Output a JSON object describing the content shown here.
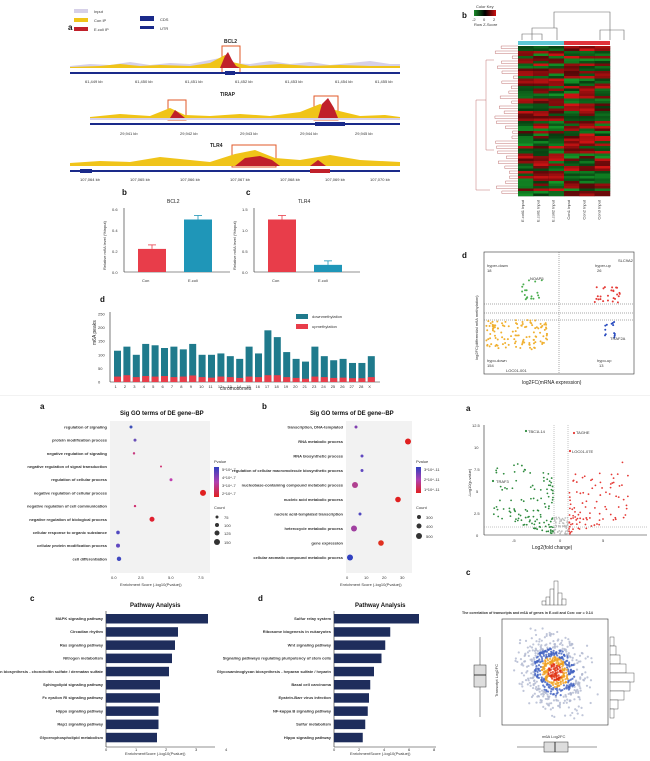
{
  "fig1": {
    "panel_a": {
      "letter": "a",
      "legend": [
        "Input",
        "Con IP",
        "E.coli IP"
      ],
      "gene_legend": [
        "CDS",
        "UTR"
      ],
      "genes": [
        "BCL2",
        "TIRAP",
        "TLR4"
      ],
      "bcl2_ticks": [
        "61,449 kb",
        "61,450 kb",
        "61,451 kb",
        "61,452 kb",
        "61,453 kb",
        "61,454 kb",
        "61,455 kb"
      ],
      "tirap_ticks": [
        "29,941 kb",
        "29,942 kb",
        "29,943 kb",
        "29,944 kb",
        "29,945 kb"
      ],
      "tlr4_ticks": [
        "107,064 kb",
        "107,065 kb",
        "107,066 kb",
        "107,067 kb",
        "107,068 kb",
        "107,069 kb",
        "107,070 kb"
      ]
    },
    "panel_b": {
      "letter": "b",
      "title": "BCL2",
      "ylabel": "Relative m6A level (%input)",
      "categories": [
        "Con",
        "E.coli"
      ],
      "values": [
        0.22,
        0.5
      ],
      "yticks": [
        "0.0",
        "0.2",
        "0.4",
        "0.6"
      ]
    },
    "panel_c": {
      "letter": "c",
      "title": "TLR4",
      "ylabel": "Relative m6A level (%input)",
      "categories": [
        "Con",
        "E.coli"
      ],
      "values": [
        1.25,
        0.17
      ],
      "yticks": [
        "0.0",
        "0.5",
        "1.0",
        "1.5"
      ]
    },
    "panel_d": {
      "letter": "d",
      "ylabel": "m6A peaks",
      "xlabel": "chromosomes",
      "legend": [
        "downmethylation",
        "upmethylation"
      ],
      "yticks": [
        "0",
        "50",
        "100",
        "150",
        "200",
        "250"
      ],
      "colors": {
        "down": "#1f7a8c",
        "up": "#e83d4a"
      }
    }
  },
  "fig2": {
    "panel_b": {
      "letter": "b",
      "color_key": "Color Key",
      "key_range": [
        "-2",
        "0",
        "2"
      ],
      "key_label": "Row Z-Score",
      "columns": [
        "E.coli1 Input",
        "E.coli1 Input",
        "E.coli2 Input",
        "Con1 Input",
        "Con2 Input",
        "Con3 Input"
      ]
    },
    "panel_d": {
      "letter": "d",
      "quadrants": [
        "hyper-down",
        "hyper-up",
        "hypo-down",
        "hypo-up"
      ],
      "counts": [
        "18",
        "26",
        "154",
        "13"
      ],
      "genes": [
        "NOAP5",
        "SLC9A2",
        "TRAF2A",
        "LOC01-001"
      ],
      "xlabel": "log2FC(mRNA expression)",
      "ylabel": "log2FC(differential m6A methylation)"
    }
  },
  "fig3": {
    "panel_a": {
      "letter": "a",
      "title": "Sig GO terms of DE gene--BP",
      "terms": [
        "regulation of signaling",
        "protein modification process",
        "negative regulation of signaling",
        "negative regulation of signal transduction",
        "regulation of cellular process",
        "negative regulation of cellular process",
        "negative regulation of cell communication",
        "negative regulation of biological process",
        "cellular response to organic substance",
        "cellular protein modification process",
        "cell differentiation"
      ],
      "xlabel": "Enrichment Score (-log10(Pvalue))",
      "legend_pvalue": "Pvalue",
      "pvalues": [
        "5*10^-7",
        "4*10^-7",
        "3*10^-7",
        "2*10^-7"
      ],
      "legend_count": "Count",
      "counts": [
        "75",
        "100",
        "125",
        "150"
      ],
      "xticks": [
        "0.0",
        "2.5",
        "5.0",
        "7.5"
      ]
    },
    "panel_b": {
      "letter": "b",
      "title": "Sig GO terms of DE gene--BP",
      "terms": [
        "transcription, DNA-templated",
        "RNA metabolic process",
        "RNA biosynthetic process",
        "regulation of cellular macromolecule biosynthetic process",
        "nucleobase-containing compound metabolic process",
        "nucleic acid metabolic process",
        "nucleic acid-templated transcription",
        "heterocycle metabolic process",
        "gene expression",
        "cellular aromatic compound metabolic process"
      ],
      "xlabel": "Enrichment Score (-log10(Pvalue))",
      "legend_pvalue": "Pvalue",
      "pvalues": [
        "3*10^-11",
        "2*10^-11",
        "1*10^-11"
      ],
      "legend_count": "Count",
      "counts": [
        "300",
        "400",
        "500"
      ],
      "xticks": [
        "0",
        "10",
        "20",
        "30"
      ]
    },
    "panel_c": {
      "letter": "c",
      "title": "Pathway Analysis",
      "pathways": [
        "MAPK signaling pathway",
        "Circadian rhythm",
        "Ras signaling pathway",
        "Nitrogen metabolism",
        "Glycosaminoglycan biosynthesis - chondroitin sulfate / dermatan sulfate",
        "Sphingolipid signaling pathway",
        "Fc epsilon RI signaling pathway",
        "Hippo signaling pathway",
        "Rap1 signaling pathway",
        "Glycerophospholipid metabolism"
      ],
      "values": [
        3.4,
        2.4,
        2.3,
        2.2,
        2.1,
        1.8,
        1.8,
        1.75,
        1.75,
        1.7
      ],
      "xlabel": "EnrichmentScore (-log10(Pvalue))",
      "xticks": [
        "0",
        "1",
        "2",
        "3",
        "4"
      ]
    },
    "panel_d": {
      "letter": "d",
      "title": "Pathway Analysis",
      "pathways": [
        "Sulfur relay system",
        "Ribosome biogenesis in eukaryotes",
        "Wnt signaling pathway",
        "Signaling pathways regulating pluripotency of stem cells",
        "Glycosaminoglycan biosynthesis - heparan sulfate / heparin",
        "Basal cell carcinoma",
        "Epstein-Barr virus infection",
        "NF-kappa B signaling pathway",
        "Sulfur metabolism",
        "Hippo signaling pathway"
      ],
      "values": [
        6.8,
        4.5,
        4.1,
        3.8,
        3.2,
        2.9,
        2.8,
        2.7,
        2.5,
        2.3
      ],
      "xlabel": "EnrichmentScore (-log10(Pvalue))",
      "xticks": [
        "0",
        "2",
        "4",
        "6",
        "8"
      ]
    }
  },
  "fig4": {
    "panel_a": {
      "letter": "a",
      "xlabel": "Log2(fold change)",
      "ylabel": "-Log10(p-value)",
      "yticks": [
        "0",
        "2.5",
        "5",
        "7.5",
        "10",
        "12.5"
      ],
      "xticks": [
        "-5",
        "0",
        "5"
      ],
      "genes": [
        "TBC1L14",
        "TRAF3",
        "TAGHE",
        "LOC01-07E"
      ]
    },
    "panel_c": {
      "letter": "c",
      "title": "The correlation of transcripts and m6A of genes in E.coli and Con: cor = 0.14",
      "xlabel": "m6A Log2FC",
      "ylabel": "Transcript Log2FC"
    }
  }
}
